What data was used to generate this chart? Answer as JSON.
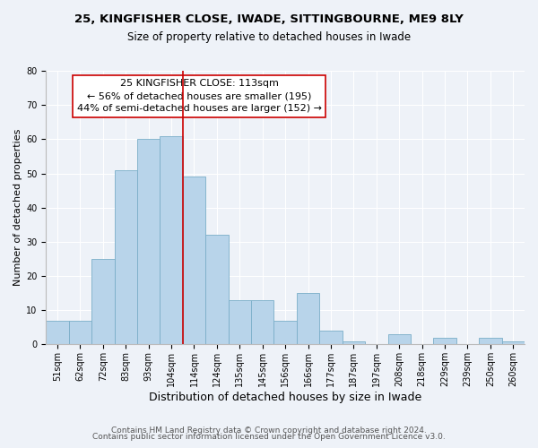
{
  "title": "25, KINGFISHER CLOSE, IWADE, SITTINGBOURNE, ME9 8LY",
  "subtitle": "Size of property relative to detached houses in Iwade",
  "xlabel": "Distribution of detached houses by size in Iwade",
  "ylabel": "Number of detached properties",
  "bar_labels": [
    "51sqm",
    "62sqm",
    "72sqm",
    "83sqm",
    "93sqm",
    "104sqm",
    "114sqm",
    "124sqm",
    "135sqm",
    "145sqm",
    "156sqm",
    "166sqm",
    "177sqm",
    "187sqm",
    "197sqm",
    "208sqm",
    "218sqm",
    "229sqm",
    "239sqm",
    "250sqm",
    "260sqm"
  ],
  "bar_values": [
    7,
    7,
    25,
    51,
    60,
    61,
    49,
    32,
    13,
    13,
    7,
    15,
    4,
    1,
    0,
    3,
    0,
    2,
    0,
    2,
    1
  ],
  "bar_color": "#b8d4ea",
  "bar_edge_color": "#7aaec8",
  "vline_x_index": 6,
  "vline_color": "#cc0000",
  "ylim": [
    0,
    80
  ],
  "yticks": [
    0,
    10,
    20,
    30,
    40,
    50,
    60,
    70,
    80
  ],
  "annotation_title": "25 KINGFISHER CLOSE: 113sqm",
  "annotation_line2": "← 56% of detached houses are smaller (195)",
  "annotation_line3": "44% of semi-detached houses are larger (152) →",
  "footer_line1": "Contains HM Land Registry data © Crown copyright and database right 2024.",
  "footer_line2": "Contains public sector information licensed under the Open Government Licence v3.0.",
  "background_color": "#eef2f8",
  "grid_color": "#ffffff",
  "title_fontsize": 9.5,
  "subtitle_fontsize": 8.5,
  "xlabel_fontsize": 9,
  "ylabel_fontsize": 8,
  "tick_fontsize": 7,
  "annotation_fontsize": 8,
  "footer_fontsize": 6.5
}
